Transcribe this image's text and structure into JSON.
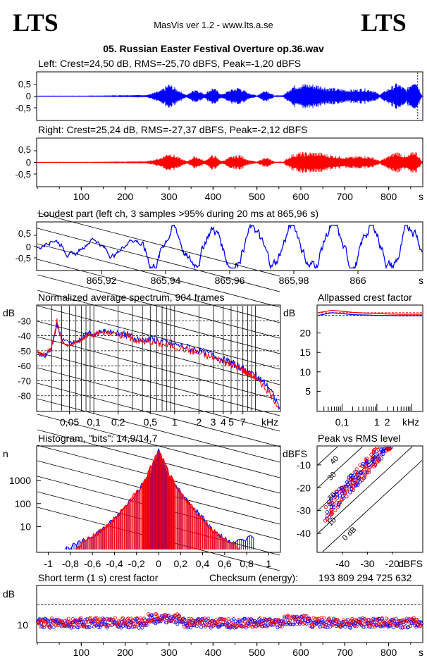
{
  "header": {
    "logo_left": "LTS",
    "logo_right": "LTS",
    "app_title": "MasVis ver 1.2 - www.lts.a.se",
    "file_title": "05. Russian Easter Festival Overture op.36.wav"
  },
  "colors": {
    "left": "#0000ff",
    "right": "#ff0000",
    "grid": "#000000"
  },
  "chart_data": [
    {
      "id": "left_waveform",
      "type": "area",
      "title": "Left: Crest=24,50 dB, RMS=-25,70 dBFS, Peak=-1,20 dBFS",
      "y_ticks": [
        "0,5",
        "0",
        "-0,5"
      ],
      "xlim": [
        0,
        876
      ],
      "ylim": [
        -1,
        1
      ],
      "envelope": {
        "x": [
          0,
          50,
          100,
          150,
          200,
          250,
          280,
          300,
          320,
          340,
          360,
          380,
          400,
          420,
          440,
          460,
          480,
          500,
          520,
          540,
          560,
          580,
          600,
          620,
          640,
          660,
          680,
          700,
          720,
          740,
          760,
          780,
          800,
          820,
          840,
          860,
          876
        ],
        "amp": [
          0.02,
          0.02,
          0.02,
          0.03,
          0.05,
          0.06,
          0.25,
          0.55,
          0.3,
          0.05,
          0.35,
          0.1,
          0.4,
          0.08,
          0.3,
          0.4,
          0.15,
          0.03,
          0.3,
          0.03,
          0.05,
          0.45,
          0.55,
          0.55,
          0.5,
          0.4,
          0.35,
          0.3,
          0.3,
          0.35,
          0.3,
          0.08,
          0.35,
          0.6,
          0.3,
          0.85,
          0.05
        ]
      },
      "peak_marker_x": 865.96
    },
    {
      "id": "right_waveform",
      "type": "area",
      "title": "Right: Crest=25,24 dB, RMS=-27,37 dBFS, Peak=-2,12 dBFS",
      "y_ticks": [
        "0,5",
        "0",
        "-0,5"
      ],
      "xlim": [
        0,
        876
      ],
      "ylim": [
        -1,
        1
      ],
      "envelope": {
        "x": [
          0,
          50,
          100,
          150,
          200,
          250,
          280,
          300,
          320,
          340,
          360,
          380,
          400,
          420,
          440,
          460,
          480,
          500,
          520,
          540,
          560,
          580,
          600,
          620,
          640,
          660,
          680,
          700,
          720,
          740,
          760,
          780,
          800,
          820,
          840,
          860,
          876
        ],
        "amp": [
          0.02,
          0.02,
          0.02,
          0.03,
          0.04,
          0.05,
          0.2,
          0.45,
          0.25,
          0.05,
          0.3,
          0.08,
          0.35,
          0.06,
          0.25,
          0.35,
          0.12,
          0.03,
          0.25,
          0.03,
          0.04,
          0.35,
          0.45,
          0.45,
          0.45,
          0.35,
          0.3,
          0.25,
          0.25,
          0.3,
          0.25,
          0.07,
          0.3,
          0.5,
          0.25,
          0.55,
          0.05
        ]
      },
      "x_ticks": [
        "100",
        "200",
        "300",
        "400",
        "500",
        "600",
        "700",
        "800"
      ],
      "x_unit": "s"
    },
    {
      "id": "loudest_part",
      "type": "line",
      "title": "Loudest part (left  ch, 3 samples >95% during 20 ms at 865,96 s)",
      "y_ticks": [
        "0,5",
        "0",
        "-0,5"
      ],
      "ylim": [
        -1,
        1
      ],
      "xlim": [
        865.9,
        866.02
      ],
      "x_ticks": [
        "865,92",
        "865,94",
        "865,96",
        "865,98",
        "866"
      ],
      "x_unit": "s"
    },
    {
      "id": "spectrum",
      "type": "line",
      "title": "Normalized average spectrum, 904 frames",
      "ylabel": "dB",
      "y_ticks": [
        "-30",
        "-40",
        "-50",
        "-60",
        "-70",
        "-80"
      ],
      "ylim": [
        -90,
        -20
      ],
      "x_ticks": [
        "0,05",
        "0,1",
        "0,2",
        "0,5",
        "1",
        "2",
        "3",
        "4",
        "5",
        "7",
        "kHz"
      ],
      "xlim": [
        0.02,
        20
      ],
      "log_x": true,
      "series": [
        {
          "color": "#0000ff",
          "x": [
            0.02,
            0.025,
            0.03,
            0.035,
            0.04,
            0.05,
            0.06,
            0.07,
            0.08,
            0.1,
            0.12,
            0.15,
            0.2,
            0.25,
            0.3,
            0.4,
            0.5,
            0.7,
            1,
            1.5,
            2,
            3,
            4,
            5,
            6,
            7,
            8,
            10,
            12,
            15,
            20
          ],
          "y": [
            -52,
            -54,
            -48,
            -32,
            -42,
            -45,
            -44,
            -42,
            -38,
            -39,
            -37,
            -37,
            -38,
            -39,
            -41,
            -43,
            -42,
            -44,
            -46,
            -48,
            -50,
            -53,
            -56,
            -58,
            -60,
            -62,
            -64,
            -66,
            -70,
            -75,
            -88
          ]
        },
        {
          "color": "#ff0000",
          "x": [
            0.02,
            0.025,
            0.03,
            0.035,
            0.04,
            0.05,
            0.06,
            0.07,
            0.08,
            0.1,
            0.12,
            0.15,
            0.2,
            0.25,
            0.3,
            0.4,
            0.5,
            0.7,
            1,
            1.5,
            2,
            3,
            4,
            5,
            6,
            7,
            8,
            10,
            12,
            15,
            20
          ],
          "y": [
            -51,
            -53,
            -48,
            -30,
            -44,
            -47,
            -44,
            -43,
            -40,
            -40,
            -38,
            -38,
            -39,
            -40,
            -42,
            -44,
            -44,
            -46,
            -47,
            -50,
            -52,
            -55,
            -57,
            -59,
            -61,
            -63,
            -65,
            -68,
            -72,
            -78,
            -88
          ]
        }
      ]
    },
    {
      "id": "allpassed_crest",
      "type": "line",
      "title": "Allpassed crest factor",
      "ylabel": "dB",
      "y_ticks": [
        "20",
        "15",
        "10",
        "5"
      ],
      "ylim": [
        0,
        27
      ],
      "x_ticks": [
        "0,1",
        "1",
        "2",
        "kHz"
      ],
      "xlim": [
        0.02,
        20
      ],
      "log_x": true,
      "series": [
        {
          "color": "#0000ff",
          "x": [
            0.02,
            0.05,
            0.1,
            0.2,
            0.5,
            1,
            2,
            5,
            20
          ],
          "y": [
            24.5,
            25.2,
            25.0,
            24.7,
            24.6,
            24.5,
            24.5,
            24.4,
            24.4
          ]
        },
        {
          "color": "#ff0000",
          "x": [
            0.02,
            0.05,
            0.1,
            0.2,
            0.5,
            1,
            2,
            5,
            20
          ],
          "y": [
            25.2,
            25.8,
            25.6,
            25.3,
            25.1,
            25.0,
            24.9,
            24.8,
            24.8
          ]
        }
      ],
      "reference_lines": [
        24.5,
        25.2
      ]
    },
    {
      "id": "histogram",
      "type": "line",
      "title": "Histogram, \"bits\": 14,9/14,7",
      "ylabel": "n",
      "y_ticks": [
        "1000",
        "100",
        "10"
      ],
      "log_y": true,
      "ylim": [
        1,
        30000
      ],
      "x_ticks": [
        "-1",
        "-0,8",
        "-0,6",
        "-0,4",
        "-0,2",
        "0",
        "0,2",
        "0,4",
        "0,6",
        "0,8",
        "1"
      ],
      "xlim": [
        -1.1,
        1.1
      ],
      "series": [
        {
          "color": "#0000ff",
          "x": [
            -0.85,
            -0.7,
            -0.6,
            -0.5,
            -0.4,
            -0.3,
            -0.2,
            -0.1,
            -0.05,
            0,
            0.05,
            0.1,
            0.2,
            0.3,
            0.4,
            0.5,
            0.6,
            0.7,
            0.88
          ],
          "y": [
            1,
            2,
            4,
            8,
            20,
            80,
            300,
            1200,
            4000,
            20000,
            4000,
            1200,
            300,
            80,
            25,
            6,
            3,
            2,
            4
          ]
        },
        {
          "color": "#ff0000",
          "x": [
            -0.75,
            -0.65,
            -0.55,
            -0.45,
            -0.35,
            -0.25,
            -0.15,
            -0.08,
            0,
            0.08,
            0.15,
            0.25,
            0.35,
            0.45,
            0.55,
            0.65,
            0.75
          ],
          "y": [
            1,
            3,
            5,
            12,
            40,
            150,
            600,
            3000,
            20000,
            3000,
            600,
            150,
            40,
            12,
            4,
            2,
            1
          ]
        }
      ]
    },
    {
      "id": "peak_vs_rms",
      "type": "scatter",
      "title": "Peak vs RMS level",
      "ylabel": "dBFS",
      "xlabel": "dBFS",
      "y_ticks": [
        "-10",
        "-20",
        "-30",
        "-40"
      ],
      "ylim": [
        -48,
        -2
      ],
      "x_ticks": [
        "-40",
        "-30",
        "-20"
      ],
      "xlim": [
        -50,
        -8
      ],
      "diagonal_labels": [
        "40",
        "30",
        "20",
        "10",
        "0 dB"
      ],
      "series": [
        {
          "color": "#0000ff"
        },
        {
          "color": "#ff0000"
        }
      ]
    },
    {
      "id": "short_term_crest",
      "type": "scatter",
      "title": "Short term (1 s) crest factor",
      "checksum_label": "Checksum (energy):",
      "checksum_value": "193 809 294 725 632",
      "ylabel": "dB",
      "y_ticks": [
        "10"
      ],
      "ylim": [
        0,
        30
      ],
      "xlim": [
        0,
        876
      ],
      "x_ticks": [
        "100",
        "200",
        "300",
        "400",
        "500",
        "600",
        "700",
        "800"
      ],
      "x_unit": "s",
      "reference_line": 20,
      "series": [
        {
          "color": "#0000ff"
        },
        {
          "color": "#ff0000"
        }
      ]
    }
  ]
}
